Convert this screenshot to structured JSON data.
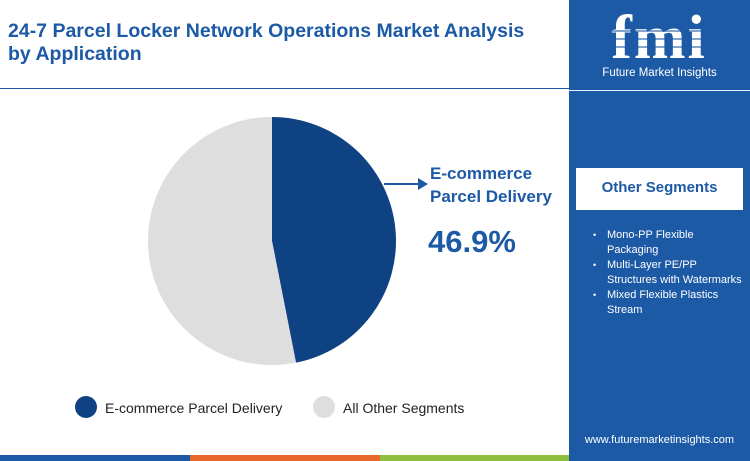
{
  "header": {
    "title": "24-7 Parcel Locker Network Operations Market Analysis by Application"
  },
  "brand": {
    "logo_text": "fmi",
    "tagline": "Future Market Insights",
    "website": "www.futuremarketinsights.com"
  },
  "sidebar": {
    "heading": "Other Segments",
    "items": [
      "Mono-PP Flexible Packaging",
      "Multi-Layer PE/PP Structures with Watermarks",
      "Mixed Flexible Plastics Stream"
    ]
  },
  "callout": {
    "label": "E-commerce Parcel Delivery",
    "value": "46.9%"
  },
  "chart_data": {
    "type": "pie",
    "title": "",
    "slices": [
      {
        "label": "E-commerce Parcel Delivery",
        "value": 46.9,
        "color": "#0e4283"
      },
      {
        "label": "All Other Segments",
        "value": 53.1,
        "color": "#dedede"
      }
    ],
    "start_angle": "12 o'clock",
    "direction": "clockwise",
    "legend_position": "bottom"
  },
  "colors": {
    "brand_blue": "#1d5aa6",
    "bottom_bar": [
      "#1d5aa6",
      "#e9672a",
      "#8fbf3f"
    ]
  }
}
